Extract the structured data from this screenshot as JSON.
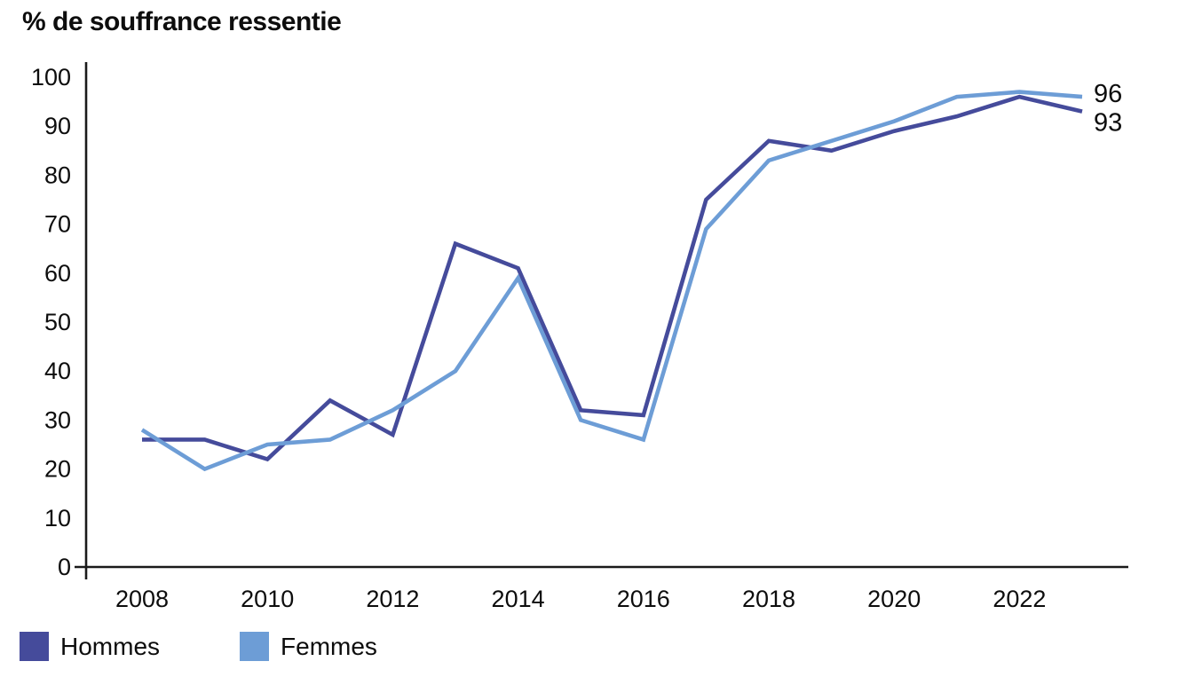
{
  "title": "% de souffrance ressentie",
  "colors": {
    "hommes": "#454B9B",
    "femmes": "#6D9DD6",
    "axis": "#1a1a1a",
    "text": "#0d0d0d"
  },
  "chart_data": {
    "type": "line",
    "title": "% de souffrance ressentie",
    "ylabel": "% de souffrance ressentie",
    "xlabel": "",
    "x": [
      2008,
      2009,
      2010,
      2011,
      2012,
      2013,
      2014,
      2015,
      2016,
      2017,
      2018,
      2019,
      2020,
      2021,
      2022,
      2023
    ],
    "xticks": [
      "2008",
      "2010",
      "2012",
      "2014",
      "2016",
      "2018",
      "2020",
      "2022"
    ],
    "yticks": [
      "0",
      "10",
      "20",
      "30",
      "40",
      "50",
      "60",
      "70",
      "80",
      "90",
      "100"
    ],
    "ylim": [
      0,
      100
    ],
    "ytick_step": 10,
    "grid": false,
    "legend_position": "bottom-left",
    "series": [
      {
        "name": "Hommes",
        "color": "#454B9B",
        "values": [
          26,
          26,
          22,
          34,
          27,
          66,
          61,
          32,
          31,
          75,
          87,
          85,
          89,
          92,
          96,
          93
        ],
        "end_label": "93"
      },
      {
        "name": "Femmes",
        "color": "#6D9DD6",
        "values": [
          28,
          20,
          25,
          26,
          32,
          40,
          59,
          30,
          26,
          69,
          83,
          87,
          91,
          96,
          97,
          96
        ],
        "end_label": "96"
      }
    ]
  }
}
